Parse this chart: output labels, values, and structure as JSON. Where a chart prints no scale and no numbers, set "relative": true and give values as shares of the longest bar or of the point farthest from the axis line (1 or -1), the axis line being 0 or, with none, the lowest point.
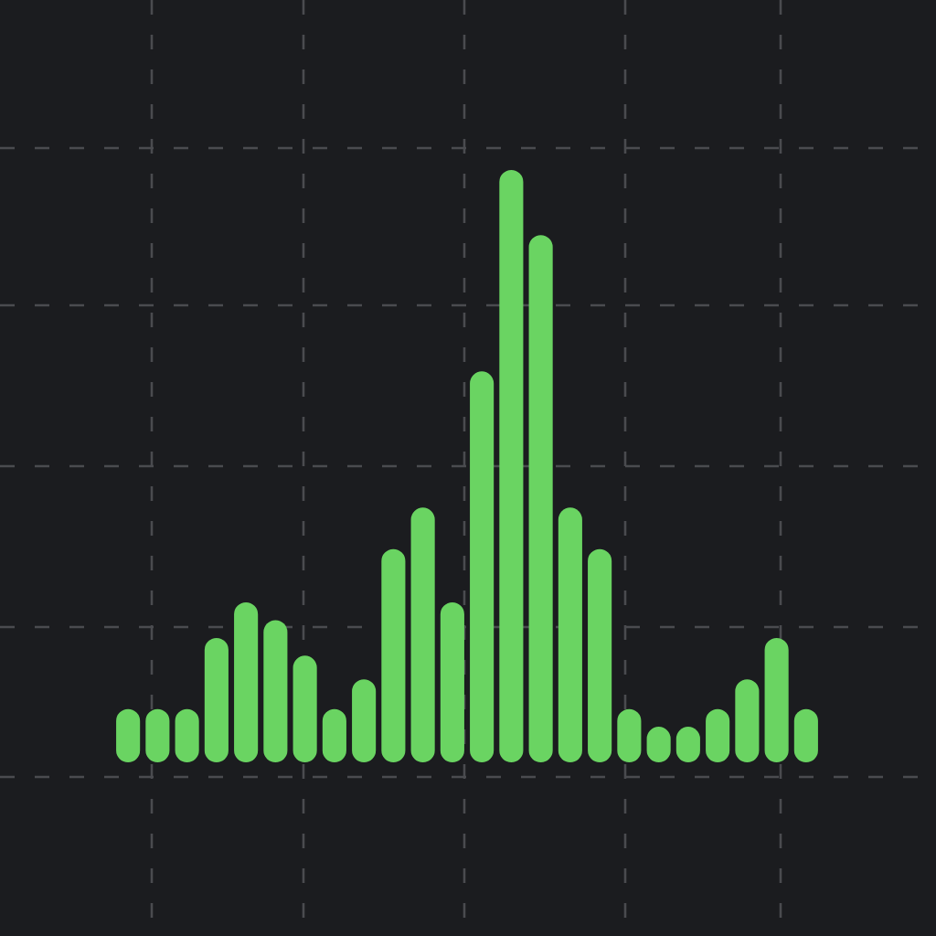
{
  "chart_data": {
    "type": "bar",
    "relative": true,
    "grid": true,
    "color": "#6ad462",
    "categories": [
      null,
      null,
      null,
      null,
      null,
      null,
      null,
      null,
      null,
      null,
      null,
      null,
      null,
      null,
      null,
      null,
      null,
      null,
      null,
      null,
      null,
      null,
      null,
      null
    ],
    "values": [
      0.09,
      0.09,
      0.09,
      0.21,
      0.27,
      0.24,
      0.18,
      0.09,
      0.14,
      0.36,
      0.43,
      0.27,
      0.66,
      1,
      0.89,
      0.43,
      0.36,
      0.09,
      0.06,
      0.06,
      0.09,
      0.14,
      0.21,
      0.09
    ]
  }
}
